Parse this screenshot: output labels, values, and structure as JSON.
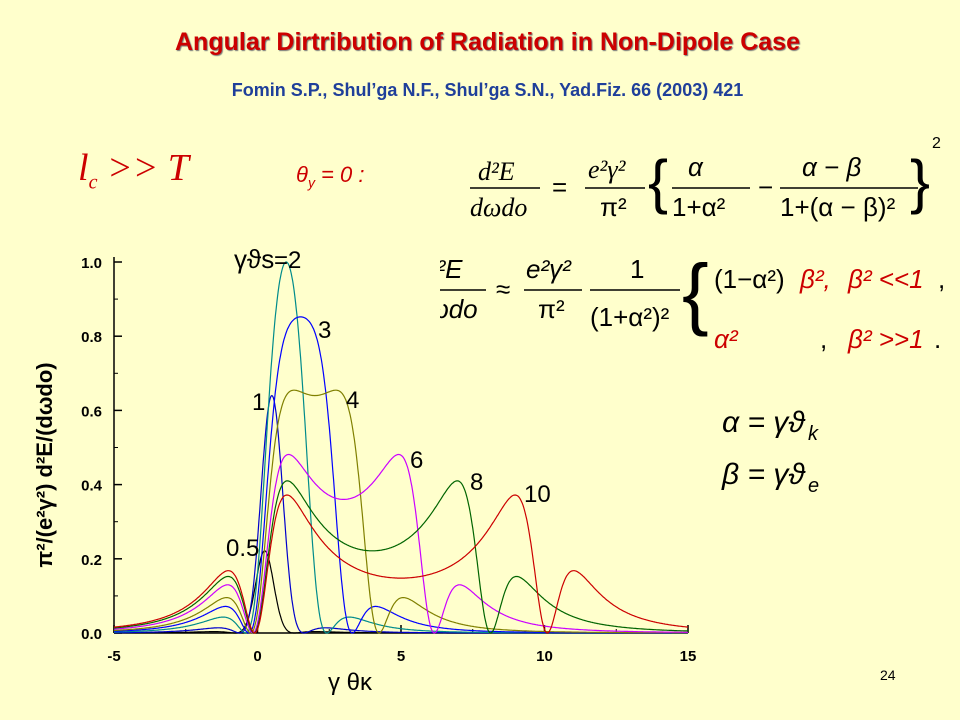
{
  "slide": {
    "title": "Angular Dirtribution of Radiation in Non-Dipole Case",
    "reference": "Fomin S.P., Shul’ga N.F., Shul’ga S.N., Yad.Fiz. 66 (2003) 421",
    "condition_lhs": "l",
    "condition_sub": "c",
    "condition_rest": " >> T",
    "theta_label": "θ",
    "theta_sub": "y",
    "theta_rest": " = 0 :",
    "page_number": "24"
  },
  "colors": {
    "title": "#cc0000",
    "reference": "#1f3f9a",
    "background": "#ffffcc"
  },
  "chart_data": {
    "type": "line",
    "title": "",
    "xlabel": "γ θκ",
    "ylabel": "π²/(e²γ²) d²E/(dωdo)",
    "xlim": [
      -5,
      15
    ],
    "ylim": [
      0,
      1.0
    ],
    "xticks": [
      "-5",
      "0",
      "5",
      "10",
      "15"
    ],
    "yticks": [
      "0.0",
      "0.2",
      "0.4",
      "0.6",
      "0.8",
      "1.0"
    ],
    "param_label": "γϑs",
    "series": [
      {
        "name": "0.5",
        "beta": 0.5,
        "color": "#000000"
      },
      {
        "name": "1",
        "beta": 1,
        "color": "#0000cc"
      },
      {
        "name": "=2",
        "beta": 2,
        "color": "#008b8b"
      },
      {
        "name": "3",
        "beta": 3,
        "color": "#0000ff"
      },
      {
        "name": "4",
        "beta": 4,
        "color": "#808000"
      },
      {
        "name": "6",
        "beta": 6,
        "color": "#cc00ff"
      },
      {
        "name": "8",
        "beta": 8,
        "color": "#006400"
      },
      {
        "name": "10",
        "beta": 10,
        "color": "#cc0000"
      }
    ]
  }
}
